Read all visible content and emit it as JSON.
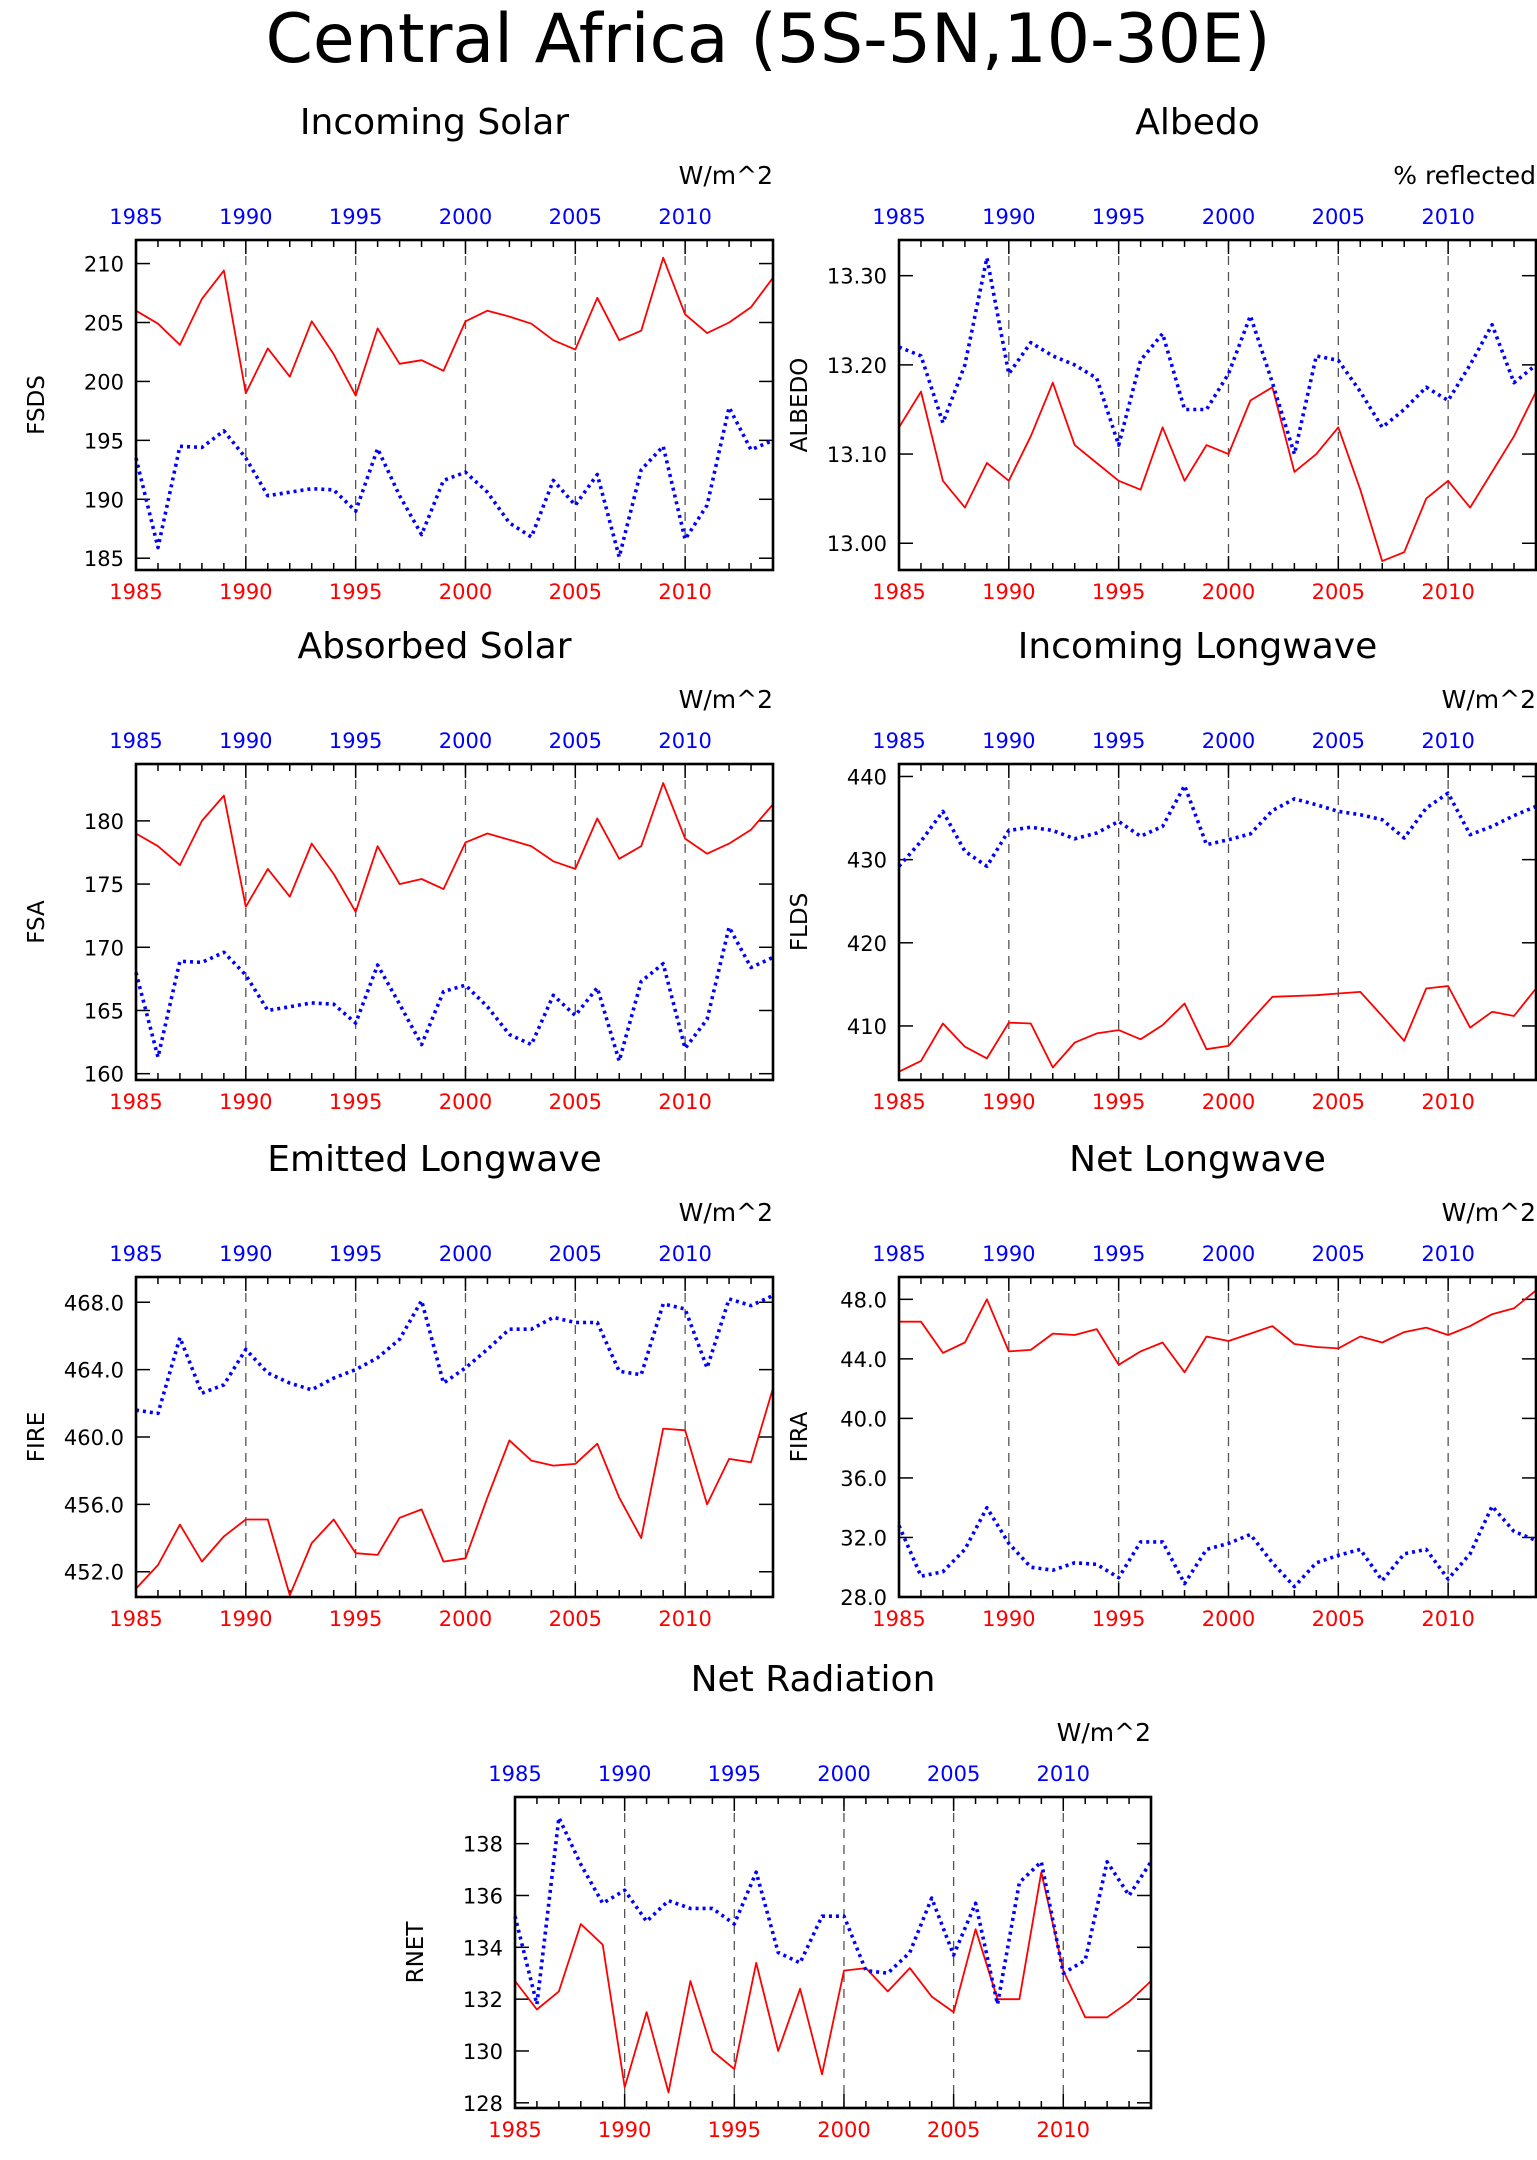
{
  "figure_title": "Central Africa (5S-5N,10-30E)",
  "colors": {
    "series_red": "#ff0000",
    "series_blue": "#0000ff",
    "axis": "#000000",
    "vline": "#555555"
  },
  "chart_data": [
    {
      "type": "line",
      "title": "Incoming Solar",
      "unit_label": "W/m^2",
      "ylabel": "FSDS",
      "bottom_axis": [
        "1985",
        "1990",
        "1995",
        "2000",
        "2005",
        "2010"
      ],
      "top_axis": [
        "1985",
        "1990",
        "1995",
        "2000",
        "2005",
        "2010"
      ],
      "xlim": [
        1985,
        2014
      ],
      "ylim": [
        184,
        212
      ],
      "yticks": [
        "185",
        "190",
        "195",
        "200",
        "205",
        "210"
      ],
      "x": [
        1985,
        1986,
        1987,
        1988,
        1989,
        1990,
        1991,
        1992,
        1993,
        1994,
        1995,
        1996,
        1997,
        1998,
        1999,
        2000,
        2001,
        2002,
        2003,
        2004,
        2005,
        2006,
        2007,
        2008,
        2009,
        2010,
        2011,
        2012,
        2013,
        2014
      ],
      "series": [
        {
          "color": "#ff0000",
          "style": "solid",
          "values": [
            206.0,
            204.9,
            203.1,
            207.0,
            209.4,
            199.0,
            202.8,
            200.4,
            205.1,
            202.3,
            198.8,
            204.5,
            201.5,
            201.8,
            200.9,
            205.1,
            206.0,
            205.5,
            204.9,
            203.5,
            202.7,
            207.1,
            203.5,
            204.3,
            210.5,
            205.7,
            204.1,
            205.0,
            206.3,
            208.8
          ]
        },
        {
          "color": "#0000ff",
          "style": "dotted",
          "values": [
            193.5,
            185.9,
            194.5,
            194.4,
            195.8,
            193.5,
            190.3,
            190.6,
            190.9,
            190.8,
            189.0,
            194.3,
            190.3,
            187.0,
            191.6,
            192.3,
            190.6,
            188.0,
            186.8,
            191.6,
            189.5,
            192.1,
            185.1,
            192.5,
            194.5,
            186.6,
            189.5,
            197.8,
            194.2,
            195.0
          ]
        }
      ]
    },
    {
      "type": "line",
      "title": "Albedo",
      "unit_label": "% reflected",
      "ylabel": "ALBEDO",
      "bottom_axis": [
        "1985",
        "1990",
        "1995",
        "2000",
        "2005",
        "2010"
      ],
      "top_axis": [
        "1985",
        "1990",
        "1995",
        "2000",
        "2005",
        "2010"
      ],
      "xlim": [
        1985,
        2014
      ],
      "ylim": [
        12.97,
        13.34
      ],
      "yticks": [
        "13.00",
        "13.10",
        "13.20",
        "13.30"
      ],
      "x": [
        1985,
        1986,
        1987,
        1988,
        1989,
        1990,
        1991,
        1992,
        1993,
        1994,
        1995,
        1996,
        1997,
        1998,
        1999,
        2000,
        2001,
        2002,
        2003,
        2004,
        2005,
        2006,
        2007,
        2008,
        2009,
        2010,
        2011,
        2012,
        2013,
        2014
      ],
      "series": [
        {
          "color": "#ff0000",
          "style": "solid",
          "values": [
            13.13,
            13.17,
            13.07,
            13.04,
            13.09,
            13.07,
            13.12,
            13.18,
            13.11,
            13.09,
            13.07,
            13.06,
            13.13,
            13.07,
            13.11,
            13.1,
            13.16,
            13.175,
            13.08,
            13.1,
            13.13,
            13.06,
            12.98,
            12.99,
            13.05,
            13.07,
            13.04,
            13.08,
            13.12,
            13.17
          ]
        },
        {
          "color": "#0000ff",
          "style": "dotted",
          "values": [
            13.22,
            13.21,
            13.135,
            13.2,
            13.32,
            13.19,
            13.225,
            13.21,
            13.2,
            13.185,
            13.11,
            13.205,
            13.235,
            13.15,
            13.15,
            13.19,
            13.255,
            13.18,
            13.1,
            13.21,
            13.205,
            13.17,
            13.13,
            13.15,
            13.175,
            13.16,
            13.2,
            13.245,
            13.18,
            13.2
          ]
        }
      ]
    },
    {
      "type": "line",
      "title": "Absorbed Solar",
      "unit_label": "W/m^2",
      "ylabel": "FSA",
      "bottom_axis": [
        "1985",
        "1990",
        "1995",
        "2000",
        "2005",
        "2010"
      ],
      "top_axis": [
        "1985",
        "1990",
        "1995",
        "2000",
        "2005",
        "2010"
      ],
      "xlim": [
        1985,
        2014
      ],
      "ylim": [
        159.5,
        184.5
      ],
      "yticks": [
        "160",
        "165",
        "170",
        "175",
        "180"
      ],
      "x": [
        1985,
        1986,
        1987,
        1988,
        1989,
        1990,
        1991,
        1992,
        1993,
        1994,
        1995,
        1996,
        1997,
        1998,
        1999,
        2000,
        2001,
        2002,
        2003,
        2004,
        2005,
        2006,
        2007,
        2008,
        2009,
        2010,
        2011,
        2012,
        2013,
        2014
      ],
      "series": [
        {
          "color": "#ff0000",
          "style": "solid",
          "values": [
            179.0,
            178.0,
            176.5,
            180.0,
            182.0,
            173.2,
            176.2,
            174.0,
            178.2,
            175.8,
            172.8,
            178.0,
            175.0,
            175.4,
            174.6,
            178.3,
            179.0,
            178.5,
            178.0,
            176.8,
            176.2,
            180.2,
            177.0,
            178.0,
            183.0,
            178.6,
            177.4,
            178.2,
            179.3,
            181.3
          ]
        },
        {
          "color": "#0000ff",
          "style": "dotted",
          "values": [
            168.0,
            161.3,
            168.9,
            168.8,
            169.6,
            167.8,
            165.0,
            165.3,
            165.6,
            165.5,
            164.0,
            168.6,
            165.5,
            162.3,
            166.5,
            167.0,
            165.3,
            163.1,
            162.3,
            166.2,
            164.6,
            166.8,
            161.0,
            167.3,
            168.7,
            162.0,
            164.3,
            171.6,
            168.4,
            169.2
          ]
        }
      ]
    },
    {
      "type": "line",
      "title": "Incoming Longwave",
      "unit_label": "W/m^2",
      "ylabel": "FLDS",
      "bottom_axis": [
        "1985",
        "1990",
        "1995",
        "2000",
        "2005",
        "2010"
      ],
      "top_axis": [
        "1985",
        "1990",
        "1995",
        "2000",
        "2005",
        "2010"
      ],
      "xlim": [
        1985,
        2014
      ],
      "ylim": [
        403.5,
        441.5
      ],
      "yticks": [
        "410",
        "420",
        "430",
        "440"
      ],
      "x": [
        1985,
        1986,
        1987,
        1988,
        1989,
        1990,
        1991,
        1992,
        1993,
        1994,
        1995,
        1996,
        1997,
        1998,
        1999,
        2000,
        2001,
        2002,
        2003,
        2004,
        2005,
        2006,
        2007,
        2008,
        2009,
        2010,
        2011,
        2012,
        2013,
        2014
      ],
      "series": [
        {
          "color": "#ff0000",
          "style": "solid",
          "values": [
            404.5,
            405.8,
            410.3,
            407.5,
            406.1,
            410.4,
            410.3,
            405.0,
            408.0,
            409.1,
            409.5,
            408.4,
            410.1,
            412.7,
            407.2,
            407.6,
            410.6,
            413.5,
            413.6,
            413.7,
            413.9,
            414.1,
            411.2,
            408.2,
            414.5,
            414.8,
            409.8,
            411.7,
            411.2,
            414.5
          ]
        },
        {
          "color": "#0000ff",
          "style": "dotted",
          "values": [
            429.2,
            432.2,
            435.8,
            431.0,
            429.2,
            433.5,
            433.9,
            433.5,
            432.5,
            433.2,
            434.6,
            432.8,
            434.0,
            438.9,
            431.8,
            432.4,
            433.1,
            435.9,
            437.3,
            436.6,
            435.8,
            435.4,
            434.8,
            432.6,
            436.2,
            438.0,
            433.0,
            434.0,
            435.3,
            436.4
          ]
        }
      ]
    },
    {
      "type": "line",
      "title": "Emitted Longwave",
      "unit_label": "W/m^2",
      "ylabel": "FIRE",
      "bottom_axis": [
        "1985",
        "1990",
        "1995",
        "2000",
        "2005",
        "2010"
      ],
      "top_axis": [
        "1985",
        "1990",
        "1995",
        "2000",
        "2005",
        "2010"
      ],
      "xlim": [
        1985,
        2014
      ],
      "ylim": [
        450.5,
        469.5
      ],
      "yticks": [
        "452.0",
        "456.0",
        "460.0",
        "464.0",
        "468.0"
      ],
      "x": [
        1985,
        1986,
        1987,
        1988,
        1989,
        1990,
        1991,
        1992,
        1993,
        1994,
        1995,
        1996,
        1997,
        1998,
        1999,
        2000,
        2001,
        2002,
        2003,
        2004,
        2005,
        2006,
        2007,
        2008,
        2009,
        2010,
        2011,
        2012,
        2013,
        2014
      ],
      "series": [
        {
          "color": "#ff0000",
          "style": "solid",
          "values": [
            451.0,
            452.4,
            454.8,
            452.6,
            454.1,
            455.1,
            455.1,
            450.6,
            453.7,
            455.1,
            453.1,
            453.0,
            455.2,
            455.7,
            452.6,
            452.8,
            456.4,
            459.8,
            458.6,
            458.3,
            458.4,
            459.6,
            456.4,
            454.0,
            460.5,
            460.4,
            456.0,
            458.7,
            458.5,
            462.9
          ]
        },
        {
          "color": "#0000ff",
          "style": "dotted",
          "values": [
            461.6,
            461.4,
            465.9,
            462.6,
            463.1,
            465.2,
            463.8,
            463.2,
            462.8,
            463.5,
            464.0,
            464.7,
            465.8,
            468.1,
            463.2,
            464.1,
            465.2,
            466.4,
            466.4,
            467.1,
            466.8,
            466.8,
            463.9,
            463.7,
            467.9,
            467.6,
            464.1,
            468.2,
            467.8,
            468.4
          ]
        }
      ]
    },
    {
      "type": "line",
      "title": "Net Longwave",
      "unit_label": "W/m^2",
      "ylabel": "FIRA",
      "bottom_axis": [
        "1985",
        "1990",
        "1995",
        "2000",
        "2005",
        "2010"
      ],
      "top_axis": [
        "1985",
        "1990",
        "1995",
        "2000",
        "2005",
        "2010"
      ],
      "xlim": [
        1985,
        2014
      ],
      "ylim": [
        28.0,
        49.5
      ],
      "yticks": [
        "28.0",
        "32.0",
        "36.0",
        "40.0",
        "44.0",
        "48.0"
      ],
      "x": [
        1985,
        1986,
        1987,
        1988,
        1989,
        1990,
        1991,
        1992,
        1993,
        1994,
        1995,
        1996,
        1997,
        1998,
        1999,
        2000,
        2001,
        2002,
        2003,
        2004,
        2005,
        2006,
        2007,
        2008,
        2009,
        2010,
        2011,
        2012,
        2013,
        2014
      ],
      "series": [
        {
          "color": "#ff0000",
          "style": "solid",
          "values": [
            46.5,
            46.5,
            44.4,
            45.1,
            48.0,
            44.5,
            44.6,
            45.7,
            45.6,
            46.0,
            43.6,
            44.5,
            45.1,
            43.1,
            45.5,
            45.2,
            45.7,
            46.2,
            45.0,
            44.8,
            44.7,
            45.5,
            45.1,
            45.8,
            46.1,
            45.6,
            46.2,
            47.0,
            47.4,
            48.6
          ]
        },
        {
          "color": "#0000ff",
          "style": "dotted",
          "values": [
            32.8,
            29.4,
            29.7,
            31.2,
            34.0,
            31.6,
            30.0,
            29.8,
            30.3,
            30.2,
            29.3,
            31.7,
            31.7,
            28.9,
            31.2,
            31.6,
            32.2,
            30.3,
            28.7,
            30.3,
            30.8,
            31.2,
            29.1,
            30.9,
            31.2,
            29.2,
            30.9,
            34.1,
            32.4,
            31.8
          ]
        }
      ]
    },
    {
      "type": "line",
      "title": "Net Radiation",
      "unit_label": "W/m^2",
      "ylabel": "RNET",
      "bottom_axis": [
        "1985",
        "1990",
        "1995",
        "2000",
        "2005",
        "2010"
      ],
      "top_axis": [
        "1985",
        "1990",
        "1995",
        "2000",
        "2005",
        "2010"
      ],
      "xlim": [
        1985,
        2014
      ],
      "ylim": [
        127.8,
        139.8
      ],
      "yticks": [
        "128",
        "130",
        "132",
        "134",
        "136",
        "138"
      ],
      "x": [
        1985,
        1986,
        1987,
        1988,
        1989,
        1990,
        1991,
        1992,
        1993,
        1994,
        1995,
        1996,
        1997,
        1998,
        1999,
        2000,
        2001,
        2002,
        2003,
        2004,
        2005,
        2006,
        2007,
        2008,
        2009,
        2010,
        2011,
        2012,
        2013,
        2014
      ],
      "series": [
        {
          "color": "#ff0000",
          "style": "solid",
          "values": [
            132.7,
            131.6,
            132.3,
            134.9,
            134.1,
            128.6,
            131.5,
            128.4,
            132.7,
            130.0,
            129.3,
            133.4,
            130.0,
            132.4,
            129.1,
            133.1,
            133.2,
            132.3,
            133.2,
            132.1,
            131.5,
            134.7,
            132.0,
            132.0,
            136.9,
            133.1,
            131.3,
            131.3,
            131.9,
            132.7
          ]
        },
        {
          "color": "#0000ff",
          "style": "dotted",
          "values": [
            135.2,
            131.8,
            139.0,
            137.2,
            135.7,
            136.2,
            135.0,
            135.8,
            135.5,
            135.5,
            134.9,
            136.9,
            133.8,
            133.4,
            135.2,
            135.2,
            133.1,
            133.0,
            133.8,
            135.9,
            133.7,
            135.7,
            131.8,
            136.5,
            137.3,
            133.0,
            133.5,
            137.3,
            136.0,
            137.3
          ]
        }
      ]
    }
  ]
}
